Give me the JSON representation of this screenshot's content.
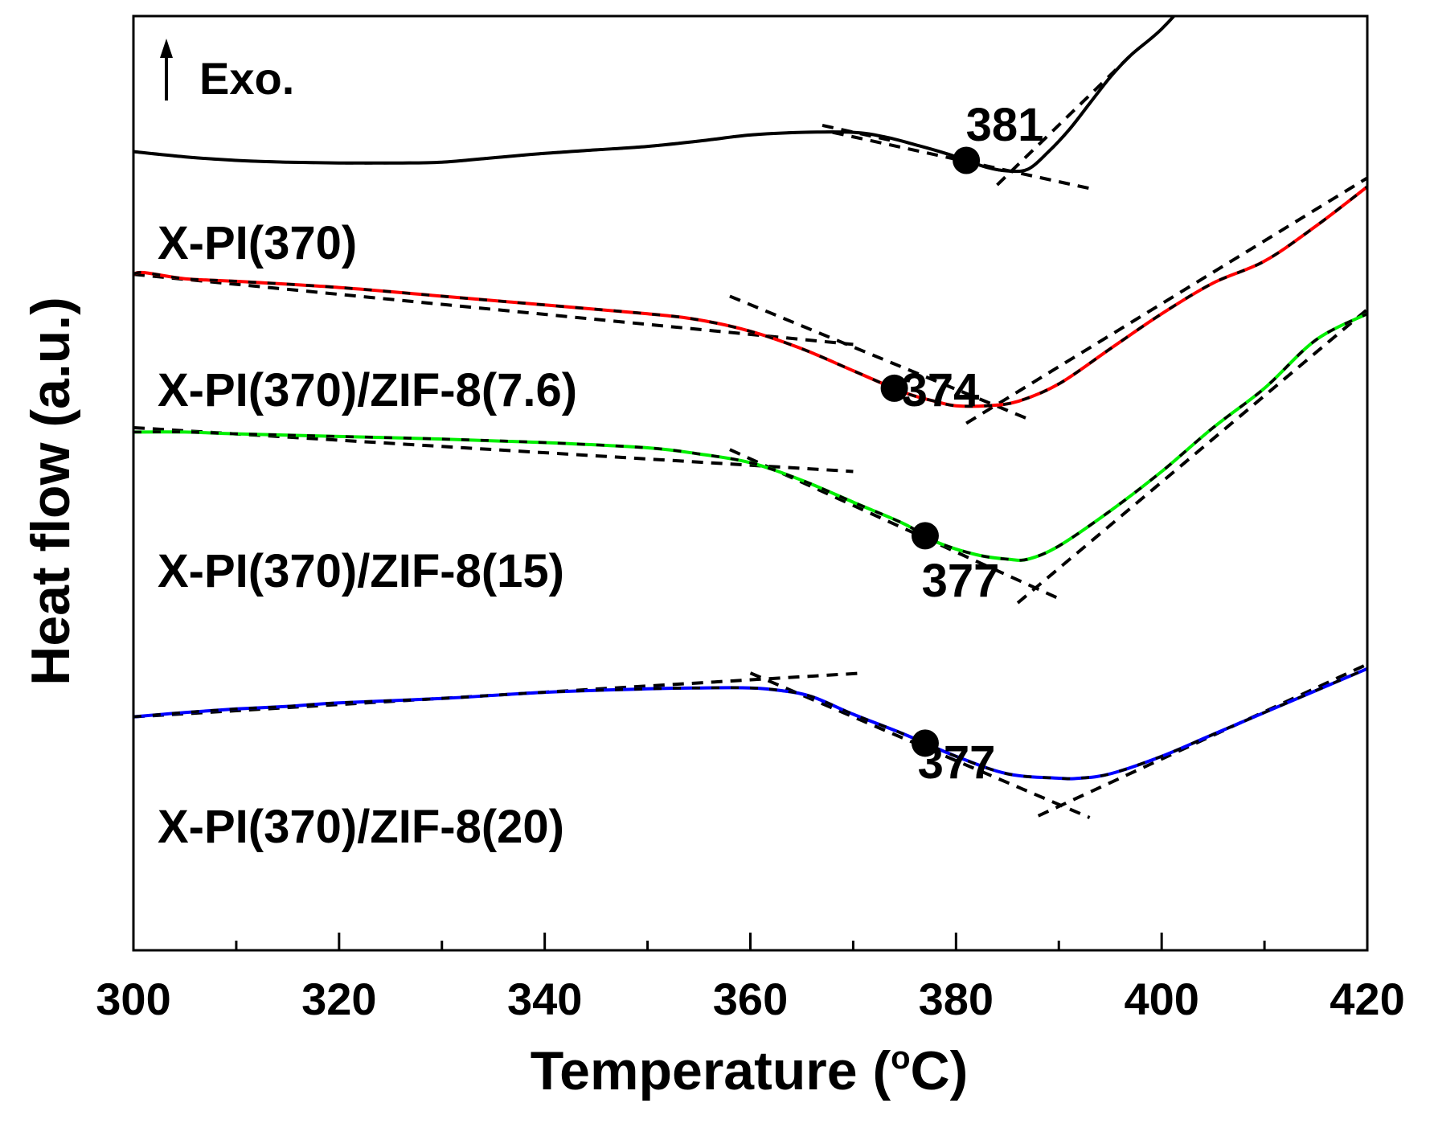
{
  "chart_data": {
    "type": "line",
    "title": "",
    "xlabel": "Temperature (°C)",
    "xlabel_main": "Temperature (",
    "xlabel_degree": "o",
    "xlabel_unit": "C)",
    "ylabel": "Heat flow (a.u.)",
    "xlim": [
      300,
      420
    ],
    "x_ticks": [
      300,
      320,
      340,
      360,
      380,
      400,
      420
    ],
    "y_ticks_shown": false,
    "annotation": "Exo.",
    "series": [
      {
        "name": "X-PI(370)",
        "color": "#000000",
        "x": [
          300,
          305,
          310,
          315,
          320,
          325,
          330,
          335,
          340,
          345,
          350,
          355,
          360,
          365,
          370,
          373,
          376,
          379,
          381,
          383,
          385,
          387,
          389,
          391,
          393,
          395,
          397,
          400,
          403,
          406
        ],
        "y": [
          4.6,
          4.54,
          4.5,
          4.48,
          4.47,
          4.47,
          4.48,
          4.53,
          4.58,
          4.62,
          4.66,
          4.72,
          4.79,
          4.82,
          4.82,
          4.77,
          4.68,
          4.58,
          4.5,
          4.42,
          4.38,
          4.4,
          4.6,
          4.85,
          5.15,
          5.45,
          5.7,
          6.0,
          6.4,
          6.9
        ],
        "onset": 381,
        "onset_label": "381"
      },
      {
        "name": "X-PI(370)/ZIF-8(7.6)",
        "color": "#ff0000",
        "x": [
          300,
          301,
          305,
          310,
          320,
          330,
          340,
          350,
          355,
          360,
          365,
          370,
          375,
          378,
          380,
          383,
          386,
          390,
          395,
          400,
          405,
          410,
          415,
          420
        ],
        "y": [
          3.2,
          3.22,
          3.15,
          3.12,
          3.05,
          2.95,
          2.85,
          2.75,
          2.68,
          2.55,
          2.35,
          2.1,
          1.85,
          1.75,
          1.7,
          1.7,
          1.75,
          1.95,
          2.35,
          2.75,
          3.1,
          3.35,
          3.75,
          4.2
        ],
        "onset": 374,
        "onset_label": "374"
      },
      {
        "name": "X-PI(370)/ZIF-8(15)",
        "color": "#00ee00",
        "x": [
          300,
          305,
          310,
          320,
          330,
          340,
          350,
          355,
          360,
          365,
          370,
          375,
          378,
          382,
          385,
          387,
          390,
          395,
          400,
          405,
          410,
          415,
          420
        ],
        "y": [
          1.4,
          1.4,
          1.38,
          1.35,
          1.32,
          1.28,
          1.22,
          1.15,
          1.05,
          0.85,
          0.6,
          0.35,
          0.15,
          0.0,
          -0.05,
          -0.05,
          0.1,
          0.5,
          0.95,
          1.45,
          1.9,
          2.45,
          2.75
        ],
        "onset": 377,
        "onset_label": "377"
      },
      {
        "name": "X-PI(370)/ZIF-8(20)",
        "color": "#0000ff",
        "x": [
          300,
          305,
          310,
          315,
          320,
          330,
          340,
          350,
          355,
          360,
          363,
          366,
          370,
          375,
          380,
          385,
          390,
          392,
          395,
          400,
          405,
          410,
          415,
          420
        ],
        "y": [
          -1.85,
          -1.8,
          -1.76,
          -1.73,
          -1.69,
          -1.64,
          -1.57,
          -1.53,
          -1.52,
          -1.52,
          -1.55,
          -1.62,
          -1.82,
          -2.05,
          -2.3,
          -2.5,
          -2.55,
          -2.55,
          -2.5,
          -2.3,
          -2.05,
          -1.8,
          -1.55,
          -1.3
        ],
        "onset": 377,
        "onset_label": "377"
      }
    ]
  }
}
